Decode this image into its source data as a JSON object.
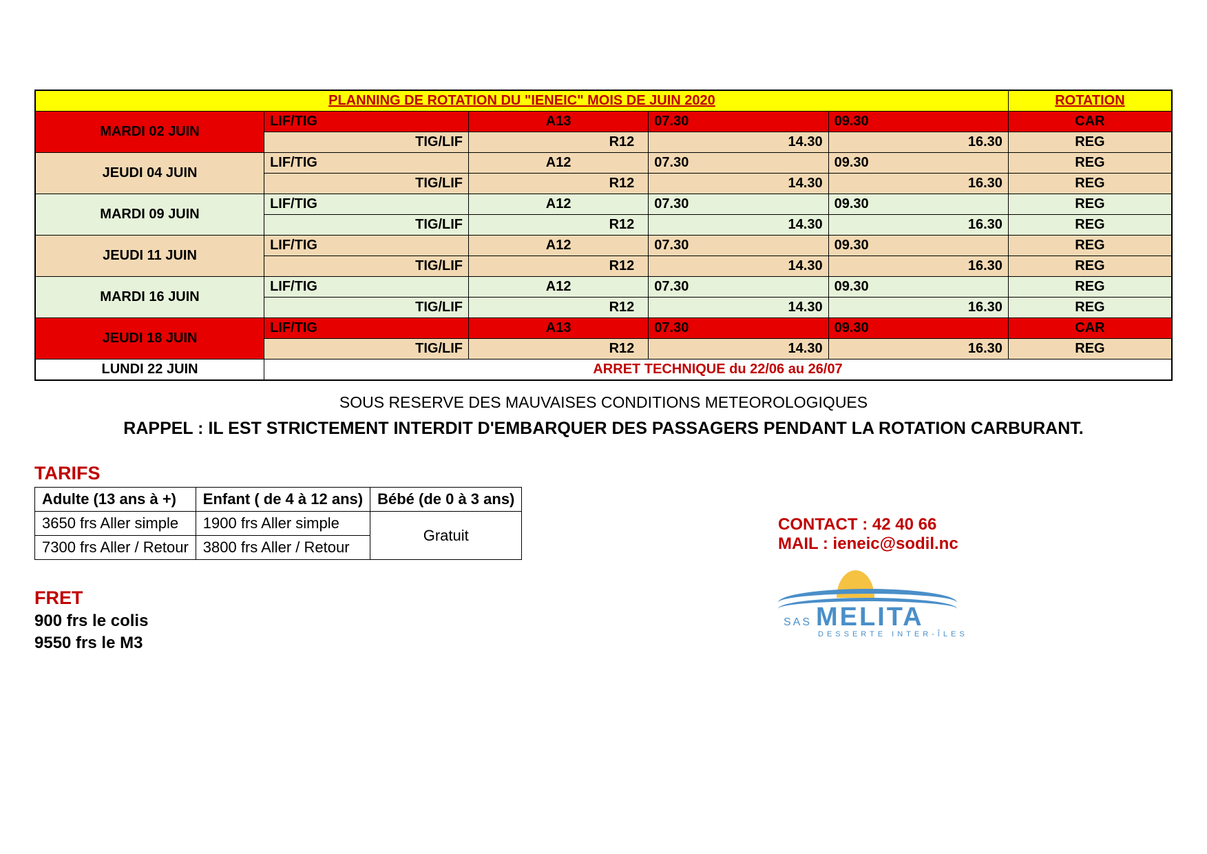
{
  "header": {
    "title": "PLANNING DE ROTATION DU \"IENEIC\" MOIS DE JUIN  2020",
    "rotation": "ROTATION"
  },
  "colors": {
    "yellow": "#ffff00",
    "red_bg": "#e60000",
    "red_text": "#c00000",
    "tan": "#f2d9b3",
    "green": "#e6f2d9",
    "white": "#ffffff",
    "border": "#000000",
    "logo_blue": "#4a8fc9",
    "logo_yellow": "#f5c242"
  },
  "schedule": {
    "rows": [
      {
        "date": "MARDI 02 JUIN",
        "leg1": {
          "route": "LIF/TIG",
          "code": "A13",
          "t1": "07.30",
          "t2": "09.30",
          "rot": "CAR",
          "row_class": "red-row"
        },
        "leg2": {
          "route": "TIG/LIF",
          "code": "R12",
          "t1": "14.30",
          "t2": "16.30",
          "rot": "REG",
          "row_class": "tan-row"
        }
      },
      {
        "date": "JEUDI 04 JUIN",
        "leg1": {
          "route": "LIF/TIG",
          "code": "A12",
          "t1": "07.30",
          "t2": "09.30",
          "rot": "REG",
          "row_class": "tan-row"
        },
        "leg2": {
          "route": "TIG/LIF",
          "code": "R12",
          "t1": "14.30",
          "t2": "16.30",
          "rot": "REG",
          "row_class": "tan-row"
        }
      },
      {
        "date": "MARDI 09 JUIN",
        "leg1": {
          "route": "LIF/TIG",
          "code": "A12",
          "t1": "07.30",
          "t2": "09.30",
          "rot": "REG",
          "row_class": "green-row"
        },
        "leg2": {
          "route": "TIG/LIF",
          "code": "R12",
          "t1": "14.30",
          "t2": "16.30",
          "rot": "REG",
          "row_class": "green-row"
        }
      },
      {
        "date": "JEUDI 11 JUIN",
        "leg1": {
          "route": "LIF/TIG",
          "code": "A12",
          "t1": "07.30",
          "t2": "09.30",
          "rot": "REG",
          "row_class": "tan-row"
        },
        "leg2": {
          "route": "TIG/LIF",
          "code": "R12",
          "t1": "14.30",
          "t2": "16.30",
          "rot": "REG",
          "row_class": "tan-row"
        }
      },
      {
        "date": "MARDI 16 JUIN",
        "leg1": {
          "route": "LIF/TIG",
          "code": "A12",
          "t1": "07.30",
          "t2": "09.30",
          "rot": "REG",
          "row_class": "green-row"
        },
        "leg2": {
          "route": "TIG/LIF",
          "code": "R12",
          "t1": "14.30",
          "t2": "16.30",
          "rot": "REG",
          "row_class": "green-row"
        }
      },
      {
        "date": "JEUDI 18 JUIN",
        "leg1": {
          "route": "LIF/TIG",
          "code": "A13",
          "t1": "07.30",
          "t2": "09.30",
          "rot": "CAR",
          "row_class": "red-row"
        },
        "leg2": {
          "route": "TIG/LIF",
          "code": "R12",
          "t1": "14.30",
          "t2": "16.30",
          "rot": "REG",
          "row_class": "tan-row"
        }
      }
    ],
    "arret": {
      "date": "LUNDI 22 JUIN",
      "text": "ARRET TECHNIQUE du 22/06 au 26/07"
    },
    "date_row_colors": [
      "red-row",
      "tan-row",
      "green-row",
      "tan-row",
      "green-row",
      "red-row"
    ]
  },
  "notes": {
    "weather": "SOUS RESERVE DES MAUVAISES CONDITIONS METEOROLOGIQUES",
    "rappel": "RAPPEL : IL EST STRICTEMENT INTERDIT D'EMBARQUER DES PASSAGERS PENDANT LA ROTATION CARBURANT."
  },
  "tarifs": {
    "title": "TARIFS",
    "headers": [
      "Adulte (13 ans à +)",
      "Enfant ( de 4 à 12 ans)",
      "Bébé (de 0 à 3 ans)"
    ],
    "rows": [
      [
        "3650 frs Aller simple",
        "1900 frs Aller simple"
      ],
      [
        "7300 frs Aller / Retour",
        "3800 frs Aller / Retour"
      ]
    ],
    "gratuit": "Gratuit"
  },
  "fret": {
    "title": "FRET",
    "line1": "900 frs le colis",
    "line2": "9550 frs le M3"
  },
  "contact": {
    "phone_label": "CONTACT : 42 40 66",
    "mail_label": "MAIL : ieneic@sodil.nc"
  },
  "logo": {
    "sas": "SAS",
    "brand": "MELITA",
    "subtitle": "DESSERTE INTER-ÎLES"
  }
}
